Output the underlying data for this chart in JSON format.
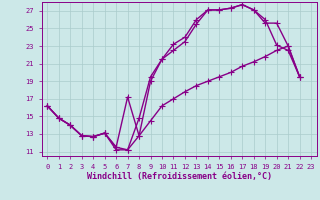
{
  "xlabel": "Windchill (Refroidissement éolien,°C)",
  "bg_color": "#cce8e8",
  "line_color": "#880088",
  "grid_color": "#aacccc",
  "xlim": [
    -0.5,
    23.5
  ],
  "ylim": [
    10.5,
    28.0
  ],
  "xticks": [
    0,
    1,
    2,
    3,
    4,
    5,
    6,
    7,
    8,
    9,
    10,
    11,
    12,
    13,
    14,
    15,
    16,
    17,
    18,
    19,
    20,
    21,
    22,
    23
  ],
  "yticks": [
    11,
    13,
    15,
    17,
    19,
    21,
    23,
    25,
    27
  ],
  "line1_x": [
    0,
    1,
    2,
    3,
    4,
    5,
    6,
    7,
    8,
    9,
    10,
    11,
    12,
    13,
    14,
    15,
    16,
    17,
    18,
    19,
    20,
    21,
    22
  ],
  "line1_y": [
    16.2,
    14.8,
    14.0,
    12.8,
    12.7,
    13.1,
    11.2,
    11.2,
    14.8,
    19.5,
    21.5,
    23.2,
    24.0,
    26.0,
    27.1,
    27.1,
    27.3,
    27.7,
    27.1,
    26.0,
    23.1,
    22.5,
    19.5
  ],
  "line2_x": [
    0,
    1,
    2,
    3,
    4,
    5,
    6,
    7,
    8,
    9,
    10,
    11,
    12,
    13,
    14,
    15,
    16,
    17,
    18,
    19,
    20,
    21,
    22
  ],
  "line2_y": [
    16.2,
    14.8,
    14.0,
    12.8,
    12.7,
    13.1,
    11.5,
    17.2,
    12.8,
    19.0,
    21.5,
    22.5,
    23.5,
    25.5,
    27.1,
    27.1,
    27.3,
    27.7,
    27.1,
    25.6,
    25.6,
    23.0,
    19.5
  ],
  "line3_x": [
    0,
    1,
    2,
    3,
    4,
    5,
    6,
    7,
    8,
    9,
    10,
    11,
    12,
    13,
    14,
    15,
    16,
    17,
    18,
    19,
    20,
    21,
    22
  ],
  "line3_y": [
    16.2,
    14.8,
    14.0,
    12.8,
    12.7,
    13.1,
    11.5,
    11.2,
    12.8,
    14.5,
    16.2,
    17.0,
    17.8,
    18.5,
    19.0,
    19.5,
    20.0,
    20.7,
    21.2,
    21.8,
    22.5,
    23.0,
    19.5
  ],
  "marker": "+",
  "markersize": 4,
  "linewidth": 1.0,
  "tick_fontsize": 5,
  "label_fontsize": 6
}
